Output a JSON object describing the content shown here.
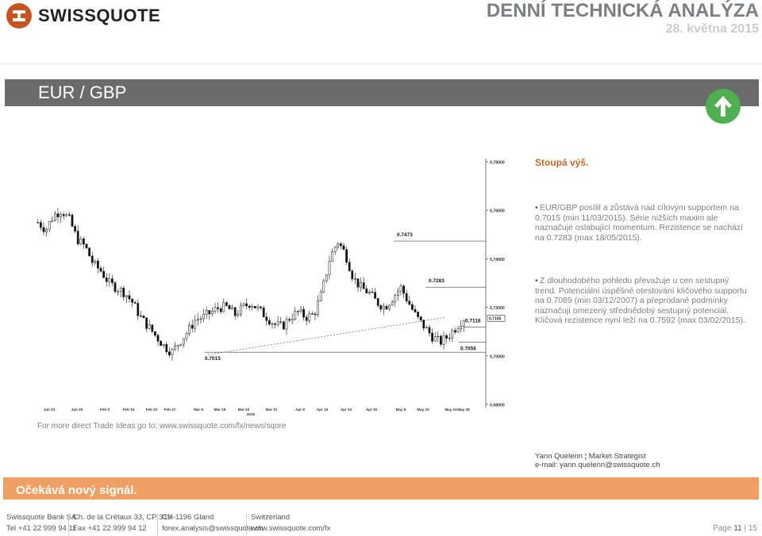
{
  "brand": {
    "name": "SWISSQUOTE"
  },
  "header": {
    "title": "DENNÍ TECHNICKÁ ANALÝZA",
    "date": "28. května 2015"
  },
  "instrument": {
    "pair": "EUR / GBP",
    "trend_icon": "arrow-up-icon",
    "trend_color": "#4daf50"
  },
  "chart_data": {
    "type": "candlestick",
    "x_ticks": [
      "Jan 22",
      "Jan 30",
      "Feb 9",
      "Feb 15",
      "Feb 22",
      "Feb 27",
      "Mar 8",
      "Mar 15",
      "Mar 23",
      "Mar 31",
      "Apr 8",
      "Apr 15",
      "Apr 22",
      "Apr 30",
      "May 8",
      "May 15",
      "May 24",
      "May 28"
    ],
    "x_year": "2015",
    "y_ticks": [
      "0,78000",
      "0,76000",
      "0,74000",
      "0,72000",
      "0,70000",
      "0,68000"
    ],
    "ylim": [
      0.68,
      0.78
    ],
    "current_price": "0,7155",
    "annotations": [
      {
        "label": "0.7473",
        "value": 0.7473
      },
      {
        "label": "0.7283",
        "value": 0.7283
      },
      {
        "label": "0.7118",
        "value": 0.7118
      },
      {
        "label": "0.7056",
        "value": 0.7056
      },
      {
        "label": "0.7015",
        "value": 0.7015
      }
    ],
    "close_path": [
      0.755,
      0.752,
      0.758,
      0.76,
      0.756,
      0.748,
      0.745,
      0.738,
      0.735,
      0.73,
      0.728,
      0.726,
      0.722,
      0.716,
      0.712,
      0.708,
      0.704,
      0.7015,
      0.706,
      0.71,
      0.715,
      0.716,
      0.718,
      0.72,
      0.72,
      0.717,
      0.72,
      0.722,
      0.719,
      0.716,
      0.713,
      0.712,
      0.716,
      0.718,
      0.716,
      0.717,
      0.726,
      0.74,
      0.7473,
      0.742,
      0.732,
      0.728,
      0.726,
      0.722,
      0.72,
      0.724,
      0.7283,
      0.722,
      0.716,
      0.712,
      0.708,
      0.7056,
      0.708,
      0.7118,
      0.7155
    ]
  },
  "commentary": {
    "headline": "Stoupá výš.",
    "bullets": [
      "EUR/GBP posílil a zůstává nad cílovým supportem na 0.7015 (min 11/03/2015). Série nižších maxim ale naznačuje oslabující momentum. Rezistence se nachází na 0.7283 (max 18/05/2015).",
      "Z dlouhodobého pohledu převažuje u cen sestupný trend. Potenciální úspěšné otestování klíčového supportu na 0.7089 (min 03/12/2007) a přeprodané podmínky naznačují omezený střednědobý sestupný potenciál. Klíčová rezistence nyní leží na 0.7592 (max 03/02/2015)."
    ]
  },
  "more_ideas": "For more direct Trade Ideas go to: www.swissquote.com/fx/news/sqore",
  "analyst": {
    "name_line": "Yann Quelenn ¦ Market Strategist",
    "email_line": "e-mail: yann.quelenn@swissquote.ch"
  },
  "signal": {
    "text": "Očekává nový signál.",
    "color": "#f1a063"
  },
  "footer": {
    "col1": [
      "Swissquote Bank SA",
      "Tel +41 22 999 94 11"
    ],
    "col2": [
      "Ch. de la Crétaux 33, CP 319",
      "Fax +41 22 999 94 12"
    ],
    "col3": [
      "CH-1196 Gland",
      "forex.analysis@swissquote.ch"
    ],
    "col4": [
      "Switzerland",
      "www.swissquote.com/fx"
    ],
    "page_label": "Page",
    "page_current": "11",
    "page_total": "15"
  }
}
